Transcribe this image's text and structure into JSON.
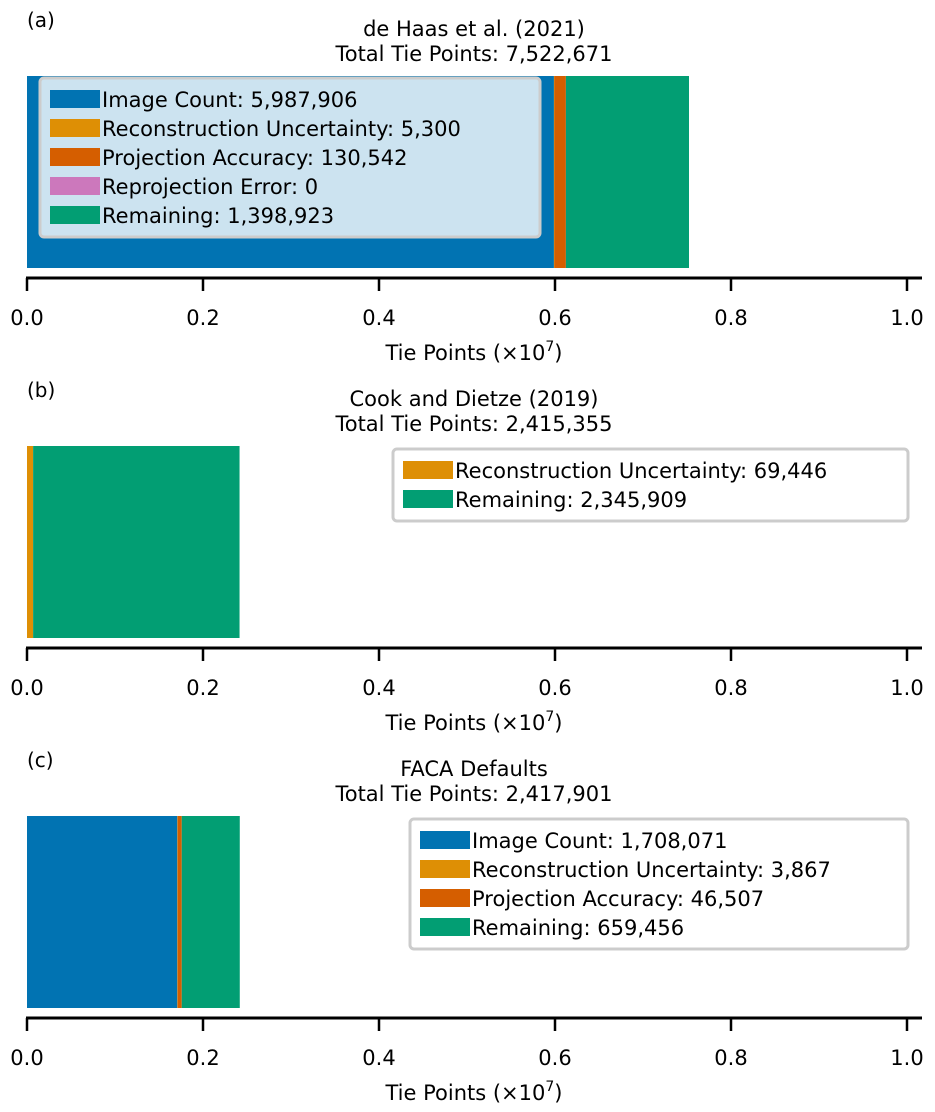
{
  "chart_data": [
    {
      "type": "bar",
      "orientation": "horizontal-stacked",
      "panel_label": "(a)",
      "title": "de Haas et al. (2021)",
      "subtitle": "Total Tie Points: 7,522,671",
      "xlabel": "Tie Points (×10",
      "xlabel_exp": "7",
      "xlabel_close": ")",
      "xlim": [
        0,
        1.0
      ],
      "xticks": [
        "0.0",
        "0.2",
        "0.4",
        "0.6",
        "0.8",
        "1.0"
      ],
      "legend_position": "upper-left",
      "legend_frame": "translucent",
      "series": [
        {
          "name": "Image Count",
          "value": 5987906,
          "label": "Image Count: 5,987,906",
          "color": "#0173b2"
        },
        {
          "name": "Reconstruction Uncertainty",
          "value": 5300,
          "label": "Reconstruction Uncertainty: 5,300",
          "color": "#de8f05"
        },
        {
          "name": "Projection Accuracy",
          "value": 130542,
          "label": "Projection Accuracy: 130,542",
          "color": "#d55e00"
        },
        {
          "name": "Reprojection Error",
          "value": 0,
          "label": "Reprojection Error: 0",
          "color": "#cc78bc"
        },
        {
          "name": "Remaining",
          "value": 1398923,
          "label": "Remaining: 1,398,923",
          "color": "#029e73"
        }
      ]
    },
    {
      "type": "bar",
      "orientation": "horizontal-stacked",
      "panel_label": "(b)",
      "title": "Cook and Dietze (2019)",
      "subtitle": "Total Tie Points: 2,415,355",
      "xlabel": "Tie Points (×10",
      "xlabel_exp": "7",
      "xlabel_close": ")",
      "xlim": [
        0,
        1.0
      ],
      "xticks": [
        "0.0",
        "0.2",
        "0.4",
        "0.6",
        "0.8",
        "1.0"
      ],
      "legend_position": "upper-right",
      "legend_frame": "white",
      "series": [
        {
          "name": "Reconstruction Uncertainty",
          "value": 69446,
          "label": "Reconstruction Uncertainty: 69,446",
          "color": "#de8f05"
        },
        {
          "name": "Remaining",
          "value": 2345909,
          "label": "Remaining: 2,345,909",
          "color": "#029e73"
        }
      ]
    },
    {
      "type": "bar",
      "orientation": "horizontal-stacked",
      "panel_label": "(c)",
      "title": "FACA Defaults",
      "subtitle": "Total Tie Points: 2,417,901",
      "xlabel": "Tie Points (×10",
      "xlabel_exp": "7",
      "xlabel_close": ")",
      "xlim": [
        0,
        1.0
      ],
      "xticks": [
        "0.0",
        "0.2",
        "0.4",
        "0.6",
        "0.8",
        "1.0"
      ],
      "legend_position": "upper-right",
      "legend_frame": "white",
      "series": [
        {
          "name": "Image Count",
          "value": 1708071,
          "label": "Image Count: 1,708,071",
          "color": "#0173b2"
        },
        {
          "name": "Reconstruction Uncertainty",
          "value": 3867,
          "label": "Reconstruction Uncertainty: 3,867",
          "color": "#de8f05"
        },
        {
          "name": "Projection Accuracy",
          "value": 46507,
          "label": "Projection Accuracy: 46,507",
          "color": "#d55e00"
        },
        {
          "name": "Remaining",
          "value": 659456,
          "label": "Remaining: 659,456",
          "color": "#029e73"
        }
      ]
    }
  ]
}
